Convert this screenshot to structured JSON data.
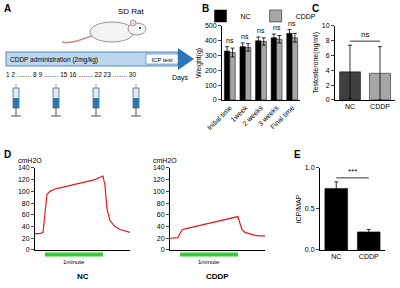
{
  "panel_labels": [
    "A",
    "B",
    "C",
    "D",
    "E"
  ],
  "diagram": {
    "animal": "SD Rat",
    "treatment": "CDDP administration (2mg/kg)",
    "test": "ICP test",
    "days": [
      "1",
      "2",
      "........",
      "8",
      "9",
      "........",
      "15",
      "16",
      "........",
      "22",
      "23",
      "........",
      "30"
    ],
    "axis_label": "Days"
  },
  "chart_data": [
    {
      "type": "bar",
      "categories": [
        "Initial time",
        "1week",
        "2 weeks",
        "3 weeks",
        "Final time"
      ],
      "series": [
        {
          "name": "NC",
          "color": "#000000",
          "values": [
            330,
            360,
            400,
            420,
            450
          ],
          "errors": [
            30,
            25,
            25,
            25,
            25
          ]
        },
        {
          "name": "CDDP",
          "color": "#a6a6a6",
          "values": [
            320,
            355,
            395,
            410,
            420
          ],
          "errors": [
            30,
            25,
            25,
            25,
            30
          ]
        }
      ],
      "y_label": "Weight(g)",
      "ylim": [
        0,
        500
      ],
      "yticks": [
        0,
        100,
        200,
        300,
        400,
        500
      ],
      "legend": "top",
      "grid": false,
      "annotations": [
        {
          "category": "Initial time",
          "text": "ns"
        },
        {
          "category": "1week",
          "text": "ns"
        },
        {
          "category": "2 weeks",
          "text": "ns"
        },
        {
          "category": "3 weeks",
          "text": "ns"
        },
        {
          "category": "Final time",
          "text": "ns"
        }
      ]
    },
    {
      "type": "bar",
      "categories": [
        "NC",
        "CDDP"
      ],
      "values": [
        3.8,
        3.6
      ],
      "errors": [
        3.6,
        3.6
      ],
      "colors": [
        "#404040",
        "#a6a6a6"
      ],
      "y_label": "Testosterone(ng/ml)",
      "ylim": [
        0,
        10
      ],
      "yticks": [
        0,
        2,
        4,
        6,
        8,
        10
      ],
      "grid": false,
      "annotations": [
        {
          "from": "NC",
          "to": "CDDP",
          "text": "ns"
        }
      ]
    },
    {
      "type": "line",
      "title": "NC",
      "y_label": "cmH2O",
      "color": "#e31a1c",
      "x": [
        0,
        5,
        8,
        10,
        12,
        15,
        20,
        25,
        30,
        35,
        40,
        45,
        50,
        55,
        60,
        65,
        68,
        70,
        72,
        75,
        80,
        85,
        90,
        95
      ],
      "values": [
        28,
        28,
        30,
        60,
        95,
        100,
        104,
        106,
        108,
        110,
        112,
        114,
        116,
        118,
        120,
        124,
        126,
        110,
        70,
        50,
        40,
        35,
        32,
        30
      ],
      "xlim": [
        0,
        95
      ],
      "ylim": [
        0,
        140
      ],
      "yticks": [
        0,
        20,
        40,
        60,
        80,
        100,
        120,
        140
      ],
      "tick_labels": "y",
      "grid": false,
      "band": {
        "label": "1minute",
        "start": 10,
        "end": 68,
        "color": "#33cc33"
      }
    },
    {
      "type": "line",
      "title": "CDDP",
      "y_label": "cmH2O",
      "color": "#e31a1c",
      "x": [
        0,
        5,
        8,
        10,
        12,
        15,
        20,
        25,
        30,
        35,
        40,
        45,
        50,
        55,
        60,
        65,
        68,
        70,
        72,
        75,
        80,
        85,
        90,
        95
      ],
      "values": [
        20,
        20,
        21,
        28,
        34,
        36,
        38,
        40,
        42,
        44,
        46,
        48,
        50,
        52,
        54,
        56,
        57,
        45,
        35,
        30,
        27,
        25,
        24,
        24
      ],
      "xlim": [
        0,
        95
      ],
      "ylim": [
        0,
        140
      ],
      "yticks": [
        0,
        20,
        40,
        60,
        80,
        100,
        120,
        140
      ],
      "tick_labels": "y",
      "grid": false,
      "band": {
        "label": "1minute",
        "start": 10,
        "end": 68,
        "color": "#33cc33"
      }
    },
    {
      "type": "bar",
      "categories": [
        "NC",
        "CDDP"
      ],
      "values": [
        0.75,
        0.22
      ],
      "errors": [
        0.08,
        0.03
      ],
      "colors": [
        "#000000",
        "#000000"
      ],
      "y_label": "ICP/MAP",
      "ylim": [
        0,
        1
      ],
      "yticks": [
        {
          "value": 0,
          "label": "0.0"
        },
        {
          "value": 0.5,
          "label": "0.5"
        },
        {
          "value": 1,
          "label": "1.0"
        }
      ],
      "grid": false,
      "annotations": [
        {
          "from": "NC",
          "to": "CDDP",
          "text": "***"
        }
      ]
    }
  ]
}
